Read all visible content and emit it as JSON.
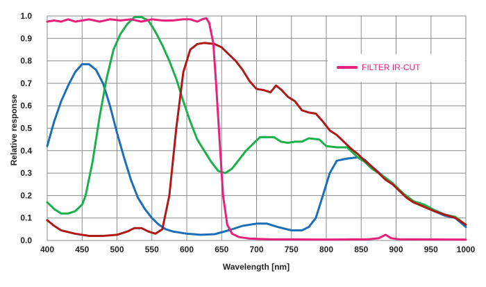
{
  "chart_data": {
    "type": "line",
    "title": "",
    "xlabel": "Wavelength [nm]",
    "ylabel": "Relative response",
    "xlim": [
      400,
      1000
    ],
    "ylim": [
      0,
      1.0
    ],
    "x_ticks": [
      400,
      450,
      500,
      550,
      600,
      650,
      700,
      750,
      800,
      850,
      900,
      950,
      1000
    ],
    "y_ticks": [
      0.0,
      0.1,
      0.2,
      0.3,
      0.4,
      0.5,
      0.6,
      0.7,
      0.8,
      0.9,
      1.0
    ],
    "x_tick_labels": [
      "400",
      "450",
      "500",
      "550",
      "600",
      "650",
      "700",
      "750",
      "800",
      "850",
      "900",
      "950",
      "1000"
    ],
    "y_tick_labels": [
      "0.0",
      "0.1",
      "0.2",
      "0.3",
      "0.4",
      "0.5",
      "0.6",
      "0.7",
      "0.8",
      "0.9",
      "1.0"
    ],
    "grid": true,
    "legend_position": "top-right",
    "series": [
      {
        "name": "",
        "color": "#1a6fb8",
        "points": [
          [
            400,
            0.42
          ],
          [
            410,
            0.53
          ],
          [
            420,
            0.62
          ],
          [
            430,
            0.69
          ],
          [
            440,
            0.75
          ],
          [
            450,
            0.785
          ],
          [
            460,
            0.785
          ],
          [
            470,
            0.76
          ],
          [
            480,
            0.7
          ],
          [
            490,
            0.6
          ],
          [
            500,
            0.48
          ],
          [
            510,
            0.37
          ],
          [
            520,
            0.27
          ],
          [
            530,
            0.19
          ],
          [
            540,
            0.14
          ],
          [
            550,
            0.1
          ],
          [
            560,
            0.07
          ],
          [
            570,
            0.05
          ],
          [
            580,
            0.04
          ],
          [
            600,
            0.03
          ],
          [
            620,
            0.025
          ],
          [
            640,
            0.028
          ],
          [
            660,
            0.045
          ],
          [
            680,
            0.065
          ],
          [
            700,
            0.075
          ],
          [
            715,
            0.075
          ],
          [
            730,
            0.06
          ],
          [
            750,
            0.045
          ],
          [
            765,
            0.045
          ],
          [
            775,
            0.06
          ],
          [
            785,
            0.1
          ],
          [
            795,
            0.2
          ],
          [
            805,
            0.3
          ],
          [
            815,
            0.355
          ],
          [
            830,
            0.365
          ],
          [
            845,
            0.37
          ],
          [
            855,
            0.36
          ],
          [
            865,
            0.33
          ],
          [
            880,
            0.29
          ],
          [
            895,
            0.25
          ],
          [
            910,
            0.21
          ],
          [
            925,
            0.17
          ],
          [
            940,
            0.155
          ],
          [
            955,
            0.13
          ],
          [
            970,
            0.11
          ],
          [
            985,
            0.1
          ],
          [
            1000,
            0.06
          ]
        ]
      },
      {
        "name": "",
        "color": "#1ab04a",
        "points": [
          [
            400,
            0.17
          ],
          [
            410,
            0.14
          ],
          [
            420,
            0.12
          ],
          [
            430,
            0.12
          ],
          [
            440,
            0.13
          ],
          [
            450,
            0.16
          ],
          [
            455,
            0.2
          ],
          [
            465,
            0.35
          ],
          [
            475,
            0.55
          ],
          [
            485,
            0.72
          ],
          [
            495,
            0.85
          ],
          [
            505,
            0.92
          ],
          [
            515,
            0.965
          ],
          [
            525,
            0.995
          ],
          [
            535,
            0.995
          ],
          [
            545,
            0.98
          ],
          [
            555,
            0.93
          ],
          [
            565,
            0.87
          ],
          [
            575,
            0.8
          ],
          [
            585,
            0.72
          ],
          [
            595,
            0.62
          ],
          [
            605,
            0.53
          ],
          [
            615,
            0.45
          ],
          [
            625,
            0.4
          ],
          [
            635,
            0.35
          ],
          [
            645,
            0.31
          ],
          [
            655,
            0.3
          ],
          [
            665,
            0.32
          ],
          [
            675,
            0.36
          ],
          [
            685,
            0.4
          ],
          [
            695,
            0.43
          ],
          [
            705,
            0.46
          ],
          [
            715,
            0.46
          ],
          [
            725,
            0.46
          ],
          [
            735,
            0.44
          ],
          [
            745,
            0.435
          ],
          [
            755,
            0.44
          ],
          [
            765,
            0.44
          ],
          [
            775,
            0.455
          ],
          [
            790,
            0.45
          ],
          [
            800,
            0.42
          ],
          [
            815,
            0.415
          ],
          [
            830,
            0.415
          ],
          [
            845,
            0.37
          ],
          [
            855,
            0.35
          ],
          [
            865,
            0.32
          ],
          [
            880,
            0.29
          ],
          [
            895,
            0.255
          ],
          [
            910,
            0.21
          ],
          [
            925,
            0.175
          ],
          [
            940,
            0.16
          ],
          [
            955,
            0.135
          ],
          [
            970,
            0.115
          ],
          [
            985,
            0.105
          ],
          [
            1000,
            0.07
          ]
        ]
      },
      {
        "name": "",
        "color": "#b01818",
        "points": [
          [
            400,
            0.09
          ],
          [
            410,
            0.065
          ],
          [
            420,
            0.045
          ],
          [
            440,
            0.03
          ],
          [
            460,
            0.02
          ],
          [
            480,
            0.02
          ],
          [
            500,
            0.025
          ],
          [
            515,
            0.04
          ],
          [
            525,
            0.055
          ],
          [
            535,
            0.055
          ],
          [
            545,
            0.04
          ],
          [
            555,
            0.03
          ],
          [
            565,
            0.05
          ],
          [
            575,
            0.2
          ],
          [
            585,
            0.5
          ],
          [
            595,
            0.75
          ],
          [
            605,
            0.85
          ],
          [
            615,
            0.875
          ],
          [
            625,
            0.88
          ],
          [
            640,
            0.875
          ],
          [
            650,
            0.86
          ],
          [
            660,
            0.83
          ],
          [
            670,
            0.8
          ],
          [
            680,
            0.76
          ],
          [
            690,
            0.71
          ],
          [
            700,
            0.675
          ],
          [
            710,
            0.67
          ],
          [
            720,
            0.66
          ],
          [
            728,
            0.69
          ],
          [
            736,
            0.67
          ],
          [
            745,
            0.64
          ],
          [
            755,
            0.62
          ],
          [
            765,
            0.58
          ],
          [
            775,
            0.57
          ],
          [
            785,
            0.565
          ],
          [
            795,
            0.53
          ],
          [
            805,
            0.49
          ],
          [
            815,
            0.47
          ],
          [
            825,
            0.44
          ],
          [
            835,
            0.41
          ],
          [
            845,
            0.385
          ],
          [
            855,
            0.355
          ],
          [
            865,
            0.33
          ],
          [
            875,
            0.3
          ],
          [
            885,
            0.27
          ],
          [
            895,
            0.25
          ],
          [
            905,
            0.22
          ],
          [
            915,
            0.19
          ],
          [
            925,
            0.17
          ],
          [
            940,
            0.15
          ],
          [
            955,
            0.13
          ],
          [
            970,
            0.115
          ],
          [
            985,
            0.1
          ],
          [
            1000,
            0.07
          ]
        ]
      },
      {
        "name": "FILTER IR-CUT",
        "color": "#e8207a",
        "points": [
          [
            400,
            0.975
          ],
          [
            410,
            0.98
          ],
          [
            420,
            0.975
          ],
          [
            430,
            0.985
          ],
          [
            440,
            0.975
          ],
          [
            450,
            0.98
          ],
          [
            460,
            0.985
          ],
          [
            475,
            0.975
          ],
          [
            490,
            0.985
          ],
          [
            505,
            0.98
          ],
          [
            520,
            0.985
          ],
          [
            535,
            0.975
          ],
          [
            550,
            0.985
          ],
          [
            565,
            0.98
          ],
          [
            580,
            0.98
          ],
          [
            595,
            0.985
          ],
          [
            605,
            0.985
          ],
          [
            615,
            0.975
          ],
          [
            622,
            0.985
          ],
          [
            628,
            0.99
          ],
          [
            632,
            0.97
          ],
          [
            638,
            0.88
          ],
          [
            642,
            0.7
          ],
          [
            647,
            0.45
          ],
          [
            652,
            0.2
          ],
          [
            658,
            0.07
          ],
          [
            665,
            0.03
          ],
          [
            675,
            0.015
          ],
          [
            690,
            0.008
          ],
          [
            720,
            0.005
          ],
          [
            800,
            0.004
          ],
          [
            860,
            0.005
          ],
          [
            875,
            0.01
          ],
          [
            885,
            0.025
          ],
          [
            893,
            0.01
          ],
          [
            905,
            0.005
          ],
          [
            1000,
            0.004
          ]
        ]
      }
    ]
  }
}
